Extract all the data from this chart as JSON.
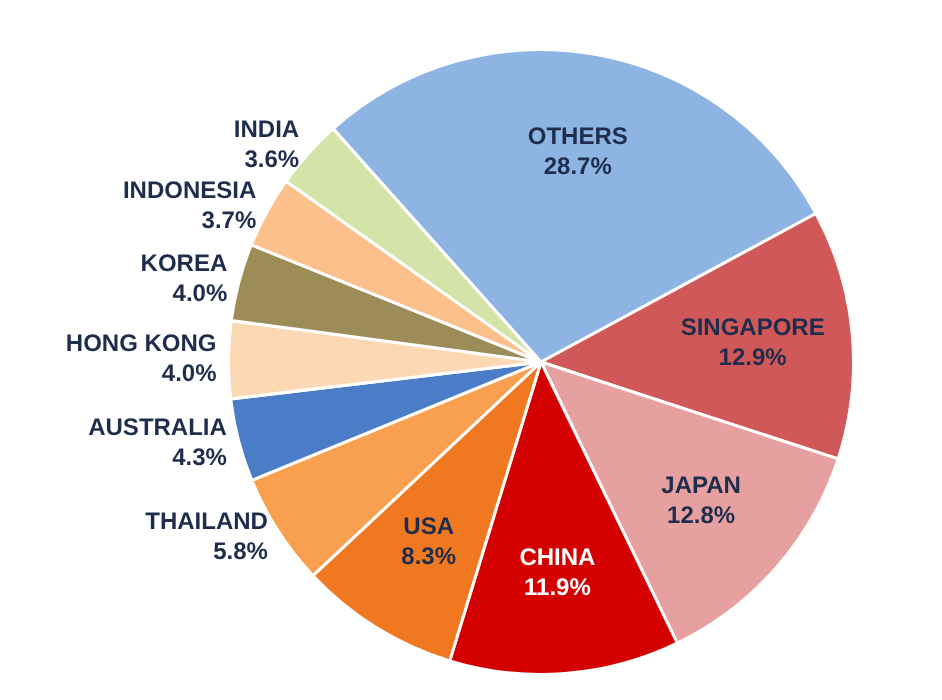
{
  "chart_data": {
    "type": "pie",
    "categories": [
      "OTHERS",
      "SINGAPORE",
      "JAPAN",
      "CHINA",
      "USA",
      "THAILAND",
      "AUSTRALIA",
      "HONG KONG",
      "KOREA",
      "INDONESIA",
      "INDIA"
    ],
    "values": [
      28.7,
      12.9,
      12.8,
      11.9,
      8.3,
      5.8,
      4.3,
      4.0,
      4.0,
      3.7,
      3.6
    ],
    "value_labels": [
      "28.7%",
      "12.9%",
      "12.8%",
      "11.9%",
      "8.3%",
      "5.8%",
      "4.3%",
      "4.0%",
      "4.0%",
      "3.7%",
      "3.6%"
    ],
    "colors": [
      "#8db4e2",
      "#d05858",
      "#e6a0a0",
      "#d40000",
      "#f07820",
      "#f9a050",
      "#4a7cc8",
      "#fcd8b4",
      "#9c8c58",
      "#fbc08c",
      "#d4e4a8"
    ],
    "legend": false
  }
}
